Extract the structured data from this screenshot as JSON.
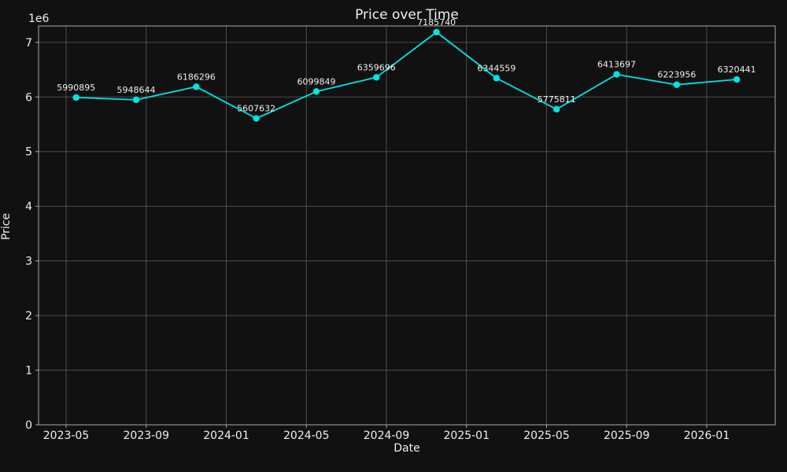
{
  "figure": {
    "title": "Price over Time"
  },
  "chart_data": {
    "type": "line",
    "title": "Price over Time",
    "xlabel": "Date",
    "ylabel": "Price",
    "y_offset_label": "1e6",
    "y_multiplier": 1000000,
    "ylim": [
      0,
      7300000
    ],
    "grid": true,
    "legend_position": "none",
    "x_ticks": [
      "2023-05",
      "2023-09",
      "2024-01",
      "2024-05",
      "2024-09",
      "2025-01",
      "2025-05",
      "2025-09",
      "2026-01"
    ],
    "y_ticks": [
      0,
      1,
      2,
      3,
      4,
      5,
      6,
      7
    ],
    "series": [
      {
        "name": "Price",
        "x": [
          "2023-05",
          "2023-08",
          "2023-11",
          "2024-02",
          "2024-05",
          "2024-08",
          "2024-11",
          "2025-02",
          "2025-05",
          "2025-08",
          "2025-11",
          "2026-02"
        ],
        "values": [
          5990895,
          5948644,
          6186296,
          5607632,
          6099849,
          6359696,
          7185740,
          6344559,
          5775811,
          6413697,
          6223956,
          6320441
        ],
        "point_labels": [
          "5990895",
          "5948644",
          "6186296",
          "5607632",
          "6099849",
          "6359696",
          "7185740",
          "6344559",
          "5775811",
          "6413697",
          "6223956",
          "6320441"
        ]
      }
    ],
    "colors": {
      "background": "#111111",
      "text": "#efefef",
      "line": "#00e5e5",
      "marker": "#00e5e5",
      "grid": "#4d4d4d",
      "spine": "#a9a9a9"
    }
  }
}
